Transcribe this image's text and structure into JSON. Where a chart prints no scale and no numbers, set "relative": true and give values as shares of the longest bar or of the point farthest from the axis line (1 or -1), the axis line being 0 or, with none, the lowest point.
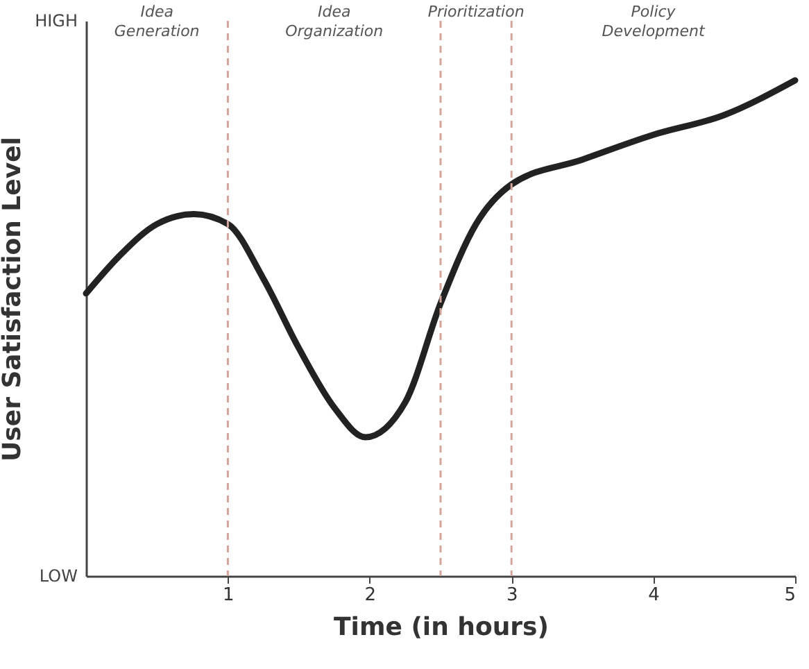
{
  "chart_data": {
    "type": "line",
    "xlabel": "Time (in hours)",
    "ylabel": "User Satisfaction Level",
    "x": [
      0,
      0.25,
      0.5,
      0.76,
      1,
      1.25,
      1.5,
      1.75,
      1.97,
      2.25,
      2.5,
      2.75,
      3,
      3.5,
      4,
      4.5,
      5
    ],
    "series": [
      {
        "color": "#222222",
        "values": [
          0.57,
          0.65,
          0.71,
          0.73,
          0.71,
          0.6,
          0.46,
          0.34,
          0.28,
          0.35,
          0.55,
          0.71,
          0.79,
          0.84,
          0.89,
          0.93,
          1
        ]
      }
    ],
    "relative": true,
    "xlim": [
      0,
      5
    ],
    "xticks": [
      1,
      2,
      3,
      4,
      5
    ],
    "ref_lines": [
      {
        "axis": "x",
        "value": 1,
        "color": "#d4a59a",
        "line_style": "dashed"
      },
      {
        "axis": "x",
        "value": 2.5,
        "color": "#d4a59a",
        "line_style": "dashed"
      },
      {
        "axis": "x",
        "value": 3,
        "color": "#d4a59a",
        "line_style": "dashed"
      }
    ],
    "annotations": [
      "Idea Generation",
      "Idea Organization",
      "Prioritization",
      "Policy Development",
      "HIGH",
      "LOW"
    ],
    "grid": false,
    "line_style": "solid"
  }
}
